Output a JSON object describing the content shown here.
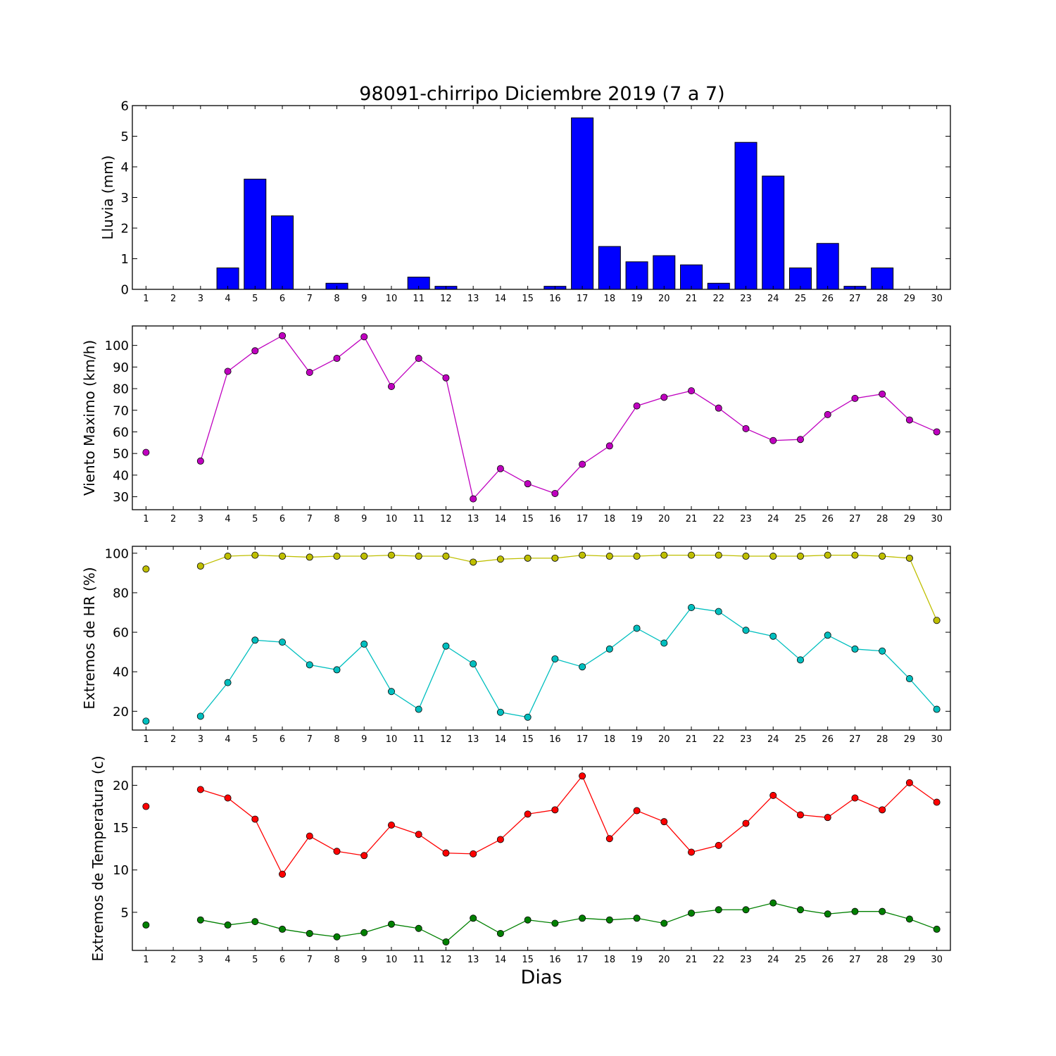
{
  "title": "98091-chirripo Diciembre 2019  (7 a 7)",
  "xlabel": "Dias",
  "chart_data": [
    {
      "type": "bar",
      "ylabel": "Lluvia (mm)",
      "x": [
        1,
        2,
        3,
        4,
        5,
        6,
        7,
        8,
        9,
        10,
        11,
        12,
        13,
        14,
        15,
        16,
        17,
        18,
        19,
        20,
        21,
        22,
        23,
        24,
        25,
        26,
        27,
        28,
        29,
        30
      ],
      "ylim": [
        0,
        6
      ],
      "yticks": [
        0,
        1,
        2,
        3,
        4,
        5,
        6
      ],
      "series": [
        {
          "color": "#0000ff",
          "values": [
            0,
            0,
            0,
            0.7,
            3.6,
            2.4,
            0,
            0.2,
            0,
            0,
            0.4,
            0.1,
            0,
            0,
            0,
            0.1,
            5.6,
            1.4,
            0.9,
            1.1,
            0.8,
            0.2,
            4.8,
            3.7,
            0.7,
            1.5,
            0.1,
            0.7,
            0,
            0
          ]
        }
      ]
    },
    {
      "type": "line",
      "ylabel": "Viento Maximo (km/h)",
      "x": [
        1,
        2,
        3,
        4,
        5,
        6,
        7,
        8,
        9,
        10,
        11,
        12,
        13,
        14,
        15,
        16,
        17,
        18,
        19,
        20,
        21,
        22,
        23,
        24,
        25,
        26,
        27,
        28,
        29,
        30
      ],
      "ylim": [
        24,
        109
      ],
      "yticks": [
        30,
        40,
        50,
        60,
        70,
        80,
        90,
        100
      ],
      "series": [
        {
          "color": "#bf00bf",
          "values": [
            50.5,
            null,
            46.5,
            88,
            97.5,
            104.5,
            87.5,
            94,
            104,
            81,
            94,
            85,
            29,
            43,
            36,
            31.5,
            45,
            53.5,
            72,
            76,
            79,
            71,
            61.5,
            56,
            56.5,
            68,
            75.5,
            77.5,
            65.5,
            60
          ]
        }
      ]
    },
    {
      "type": "line",
      "ylabel": "Extremos de HR (%)",
      "x": [
        1,
        2,
        3,
        4,
        5,
        6,
        7,
        8,
        9,
        10,
        11,
        12,
        13,
        14,
        15,
        16,
        17,
        18,
        19,
        20,
        21,
        22,
        23,
        24,
        25,
        26,
        27,
        28,
        29,
        30
      ],
      "ylim": [
        10.5,
        103.5
      ],
      "yticks": [
        20,
        40,
        60,
        80,
        100
      ],
      "series": [
        {
          "color": "#bfbf00",
          "values": [
            92,
            null,
            93.5,
            98.5,
            99,
            98.5,
            98,
            98.5,
            98.5,
            99,
            98.5,
            98.5,
            95.5,
            97,
            97.5,
            97.5,
            99,
            98.5,
            98.5,
            99,
            99,
            99,
            98.5,
            98.5,
            98.5,
            99,
            99,
            98.5,
            97.5,
            66
          ]
        },
        {
          "color": "#00bfbf",
          "values": [
            15,
            null,
            17.5,
            34.5,
            56,
            55,
            43.5,
            41,
            54,
            30,
            21,
            53,
            44,
            19.5,
            17,
            46.5,
            42.5,
            51.5,
            62,
            54.5,
            72.5,
            70.5,
            61,
            58,
            46,
            58.5,
            51.5,
            50.5,
            36.5,
            21
          ]
        }
      ]
    },
    {
      "type": "line",
      "ylabel": "Extremos de Temperatura (c)",
      "x": [
        1,
        2,
        3,
        4,
        5,
        6,
        7,
        8,
        9,
        10,
        11,
        12,
        13,
        14,
        15,
        16,
        17,
        18,
        19,
        20,
        21,
        22,
        23,
        24,
        25,
        26,
        27,
        28,
        29,
        30
      ],
      "ylim": [
        0.5,
        22.2
      ],
      "yticks": [
        5,
        10,
        15,
        20
      ],
      "series": [
        {
          "color": "#ff0000",
          "values": [
            17.5,
            null,
            19.5,
            18.5,
            16,
            9.5,
            14,
            12.2,
            11.7,
            15.3,
            14.2,
            12,
            11.9,
            13.6,
            16.6,
            17.1,
            21.1,
            13.7,
            17,
            15.7,
            12.1,
            12.9,
            15.5,
            18.8,
            16.5,
            16.2,
            18.5,
            17.1,
            20.3,
            18
          ]
        },
        {
          "color": "#008000",
          "values": [
            3.5,
            null,
            4.1,
            3.5,
            3.9,
            3,
            2.5,
            2.1,
            2.6,
            3.6,
            3.1,
            1.5,
            4.3,
            2.5,
            4.1,
            3.7,
            4.3,
            4.1,
            4.3,
            3.7,
            4.9,
            5.3,
            5.3,
            6.1,
            5.3,
            4.8,
            5.1,
            5.1,
            4.2,
            3
          ]
        }
      ]
    }
  ]
}
